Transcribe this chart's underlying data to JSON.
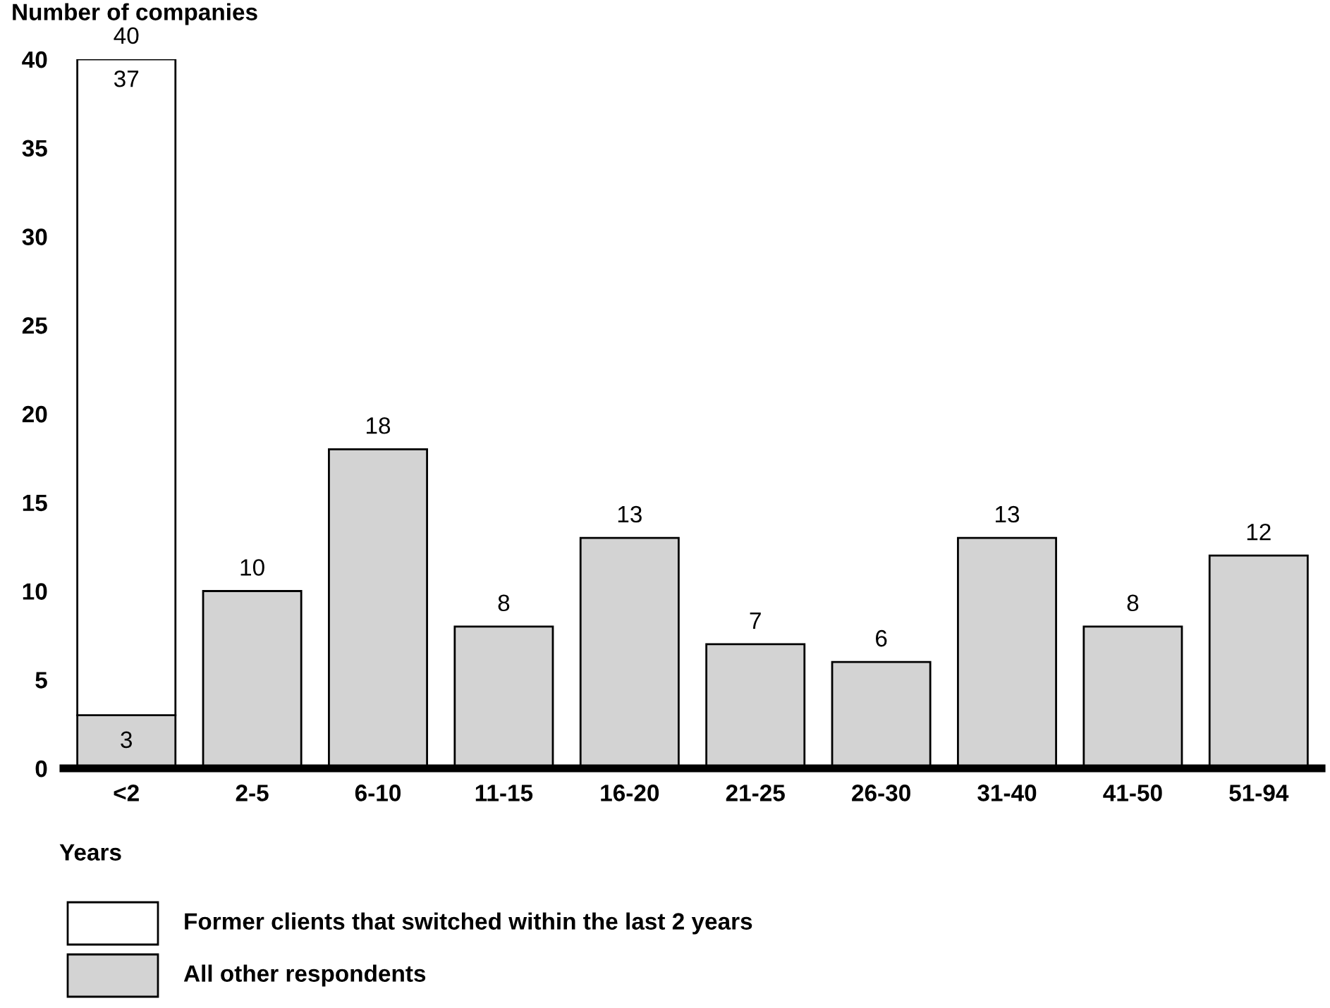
{
  "chart_data": {
    "type": "bar",
    "stacked": true,
    "ylabel": "Number of companies",
    "xlabel": "Years",
    "categories": [
      "<2",
      "2-5",
      "6-10",
      "11-15",
      "16-20",
      "21-25",
      "26-30",
      "31-40",
      "41-50",
      "51-94"
    ],
    "series": [
      {
        "name": "All other respondents",
        "color": "#d3d3d3",
        "values": [
          3,
          10,
          18,
          8,
          13,
          7,
          6,
          13,
          8,
          12
        ],
        "value_labels": [
          "3",
          null,
          null,
          null,
          null,
          null,
          null,
          null,
          null,
          null
        ]
      },
      {
        "name": "Former clients that switched within the last 2 years",
        "color": "#ffffff",
        "values": [
          37,
          null,
          null,
          null,
          null,
          null,
          null,
          null,
          null,
          null
        ],
        "value_labels": [
          "37",
          null,
          null,
          null,
          null,
          null,
          null,
          null,
          null,
          null
        ]
      }
    ],
    "totals": [
      "40",
      "10",
      "18",
      "8",
      "13",
      "7",
      "6",
      "13",
      "8",
      "12"
    ],
    "ylim": [
      0,
      40
    ],
    "yticks": [
      0,
      5,
      10,
      15,
      20,
      25,
      30,
      35,
      40
    ],
    "grid": false,
    "legend": "bottom"
  }
}
